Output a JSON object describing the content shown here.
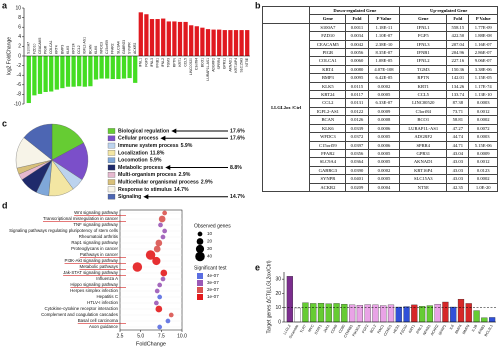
{
  "chart_data": [
    {
      "panel": "a",
      "type": "bar",
      "y_label": "log2 FoldChange",
      "categories": [
        "S100A7",
        "FZD10",
        "CEACAM5",
        "PIGR",
        "COLCA1",
        "KRT4",
        "BMP3",
        "KLK5",
        "KRT24",
        "CCL2",
        "IGFL2-AS1",
        "BCAN",
        "KLK6",
        "WFDC3",
        "C15orf59",
        "FFAR2",
        "SLC9A4",
        "GABRG3",
        "SYNPR",
        "ACKR2",
        "IFNL1",
        "FGF5",
        "IFNL3",
        "IFNB1",
        "IFNL2",
        "TGM3",
        "RPTN",
        "KRT1",
        "CCL5",
        "LINC00520",
        "C3orf84",
        "BCO1",
        "LURAP1L-AS1",
        "ADGRF2",
        "SPRR4",
        "GPR31",
        "AKNAD1",
        "KRT16P4",
        "SLC15A3",
        "NT5E"
      ],
      "values": [
        -9.8,
        -8.2,
        -7.9,
        -7.5,
        -7.4,
        -7.0,
        -6.7,
        -6.4,
        -6.4,
        -6.3,
        -6.4,
        -6.3,
        -4.9,
        -4.7,
        -4.7,
        -4.8,
        -4.8,
        -4.7,
        -4.6,
        -5.6,
        9.1,
        8.7,
        7.7,
        7.7,
        7.8,
        7.2,
        7.2,
        7.1,
        7.1,
        6.4,
        6.2,
        5.9,
        5.6,
        5.5,
        5.5,
        5.4,
        5.4,
        5.4,
        5.4,
        5.4
      ],
      "color_negative": "#44dd22",
      "color_positive": "#e0191f",
      "ylim": [
        -10,
        10
      ],
      "yticks": [
        -10,
        -8,
        -6,
        -4,
        -2,
        0,
        2,
        4,
        6,
        8,
        10
      ]
    },
    {
      "panel": "c",
      "type": "pie",
      "categories": [
        "Biological regulation",
        "Cellular process",
        "Immune system process",
        "Localization",
        "Locomotion",
        "Metabolic process",
        "Multi-organism process",
        "Multicellular organismal process",
        "Response to stimulus",
        "Signaling"
      ],
      "values": [
        17.6,
        17.6,
        5.9,
        11.8,
        5.9,
        8.8,
        2.9,
        2.9,
        14.7,
        14.7
      ],
      "value_labels": [
        "17.6%",
        "17.6%",
        "5.9%",
        "11.8%",
        "5.9%",
        "8.8%",
        "2.9%",
        "2.9%",
        "14.7%",
        "14.7%"
      ],
      "colors": [
        "#66cc33",
        "#7b4fc9",
        "#bcd3ee",
        "#f3e6a3",
        "#7fa7d9",
        "#1f2a6b",
        "#e6b8cf",
        "#d8c07a",
        "#f7f4e8",
        "#4d66b3"
      ]
    },
    {
      "panel": "d",
      "type": "dot",
      "x_label": "FoldChange",
      "categories": [
        "Wnt signaling pathway",
        "Transcriptional misregulation in cancer",
        "TNF signaling pathway",
        "Signaling pathways regulating pluripotency of stem cells",
        "Rheumatoid arthritis",
        "Rap1 signaling pathway",
        "Proteoglycans in cancer",
        "Pathways in cancer",
        "PI3K-Akt signaling pathway",
        "Metabolic pathways",
        "Jak-STAT signaling pathway",
        "Influenza A",
        "Hippo signaling pathway",
        "Herpes simplex infection",
        "Hepatitis C",
        "HTLV-I infection",
        "Cytokine-cytokine receptor interaction",
        "Complement and coagulation cascades",
        "Basal cell carcinoma",
        "Axon guidance"
      ],
      "x": [
        7.9,
        7.6,
        7.4,
        7.9,
        7.7,
        7.2,
        7.0,
        6.2,
        6.9,
        4.6,
        7.8,
        7.7,
        7.3,
        7.0,
        7.3,
        6.9,
        7.2,
        8.7,
        8.3,
        7.3
      ],
      "sizes": [
        10,
        20,
        10,
        10,
        10,
        20,
        20,
        40,
        30,
        40,
        20,
        10,
        10,
        10,
        10,
        10,
        20,
        10,
        10,
        10
      ],
      "pvalues": [
        2e-07,
        2e-07,
        3e-07,
        3e-07,
        3e-07,
        2e-07,
        2e-07,
        1e-07,
        1e-07,
        1e-07,
        1e-07,
        3e-07,
        3e-07,
        3e-07,
        4e-07,
        3e-07,
        1e-07,
        2e-07,
        4e-07,
        4e-07
      ],
      "xlim": [
        2.5,
        10
      ],
      "xticks": [
        {
          "value": 2.5,
          "label": "2.5"
        },
        {
          "value": 5,
          "label": "5.0"
        },
        {
          "value": 7.5,
          "label": "7.5"
        },
        {
          "value": 10,
          "label": "10.0"
        }
      ],
      "size_legend": {
        "title": "Observed genes",
        "values": [
          10,
          20,
          30,
          40
        ]
      },
      "color_legend": {
        "title": "Significant test",
        "levels": [
          {
            "value": 4e-07,
            "label": "4e-07",
            "color": "#5b6ee1"
          },
          {
            "value": 3e-07,
            "label": "3e-07",
            "color": "#9b59b6"
          },
          {
            "value": 2e-07,
            "label": "2e-07",
            "color": "#d9534f"
          },
          {
            "value": 1e-07,
            "label": "1e-07",
            "color": "#e31a1c"
          }
        ]
      }
    },
    {
      "panel": "e",
      "type": "bar",
      "y_label": "Target genes ΔCT(LLGL2ox/Ctrl)",
      "categories": [
        "LLGL2",
        "Scramble",
        "TLR7",
        "MYC",
        "STAT1",
        "JAK1",
        "CDK6",
        "CD80",
        "CTNNB1",
        "PIK3CA",
        "FGF2",
        "BCL2",
        "RAC1",
        "CCND1",
        "HES1",
        "FZD10",
        "KRT1",
        "IFNL1",
        "NFKB1",
        "ACKR2",
        "SFRP1",
        "IL6",
        "BMP4",
        "MMP9",
        "IL1B",
        "IFNB1",
        "BCL2L1"
      ],
      "values": [
        32,
        9.8,
        13.5,
        13,
        13.2,
        12.8,
        13,
        12.5,
        12,
        11.8,
        12.2,
        12,
        11.5,
        12,
        10.5,
        10.8,
        12,
        11,
        11.5,
        12.5,
        14,
        10.5,
        16,
        13,
        8,
        3,
        3.2
      ],
      "colors": [
        "#7b2d8e",
        "#ffffff",
        "#66cc33",
        "#66cc33",
        "#66cc33",
        "#66cc33",
        "#66cc33",
        "#66cc33",
        "#e9a3e6",
        "#e9a3e6",
        "#e9a3e6",
        "#e9a3e6",
        "#e9a3e6",
        "#e9a3e6",
        "#3050d8",
        "#3050d8",
        "#d62728",
        "#66cc33",
        "#66cc33",
        "#e9a3e6",
        "#d62728",
        "#3050d8",
        "#d62728",
        "#d62728",
        "#66cc33",
        "#66cc33",
        "#3050d8"
      ],
      "ylim": [
        0,
        35
      ],
      "yticks": [
        0,
        10,
        20,
        30
      ],
      "reference_line": 10
    }
  ],
  "table": {
    "panel": "b",
    "group_label": "LLGL2ox /Ctrl",
    "group_headers": [
      "Down-regulated Gene",
      "Up-regulated Gene"
    ],
    "columns": [
      "Gene",
      "Fold",
      "P Value",
      "Gene",
      "Fold",
      "P Value"
    ],
    "rows": [
      [
        "S100A7",
        "0.0011",
        "1.18E-11",
        "IFNL1",
        "558.15",
        "1.77E-09"
      ],
      [
        "FZD10",
        "0.0034",
        "1.10E-07",
        "FGF5",
        "422.50",
        "1.88E-08"
      ],
      [
        "CEACAM5",
        "0.0042",
        "2.38E-10",
        "IFNL3",
        "207.04",
        "1.16E-07"
      ],
      [
        "PIGR",
        "0.0056",
        "8.35E-07",
        "IFNB1",
        "204.96",
        "2.86E-07"
      ],
      [
        "COLCA1",
        "0.0060",
        "1.08E-05",
        "IFNL2",
        "227.16",
        "9.06E-07"
      ],
      [
        "KRT4",
        "0.0080",
        "4.07E-108",
        "TGM3",
        "150.36",
        "3.38E-06"
      ],
      [
        "BMP3",
        "0.0095",
        "6.42E-05",
        "RPTN",
        "142.01",
        "1.15E-05"
      ],
      [
        "KLK5",
        "0.0115",
        "0.0002",
        "KRT1",
        "134.26",
        "1.17E-74"
      ],
      [
        "KRT24",
        "0.0117",
        "0.0005",
        "CCL5",
        "133.74",
        "1.13E-10"
      ],
      [
        "CCL2",
        "0.0131",
        "6.33E-07",
        "LINC00520",
        "87.38",
        "0.0003"
      ],
      [
        "IGFL2-AS1",
        "0.0122",
        "0.0009",
        "C3orf84",
        "73.71",
        "0.0012"
      ],
      [
        "BCAN",
        "0.0126",
        "0.0008",
        "BCO1",
        "58.81",
        "0.0002"
      ],
      [
        "KLK6",
        "0.0339",
        "0.0006",
        "LURAP1L-AS1",
        "47.27",
        "0.0072"
      ],
      [
        "WFDC3",
        "0.0372",
        "0.0005",
        "ADGRF2",
        "44.74",
        "0.0003"
      ],
      [
        "C15orf59",
        "0.0397",
        "0.0006",
        "SPRR4",
        "44.71",
        "5.15E-06"
      ],
      [
        "FFAR2",
        "0.0356",
        "0.0005",
        "GPR31",
        "43.04",
        "0.0009"
      ],
      [
        "SLC9A4",
        "0.0364",
        "0.0005",
        "AKNAD1",
        "43.03",
        "0.0012"
      ],
      [
        "GABRG3",
        "0.0390",
        "0.0002",
        "KRT16P4",
        "43.03",
        "0.0123"
      ],
      [
        "SYNPR",
        "0.0401",
        "0.0005",
        "SLC15A3",
        "43.03",
        "0.0002"
      ],
      [
        "ACKR2",
        "0.0209",
        "0.0004",
        "NT5E",
        "42.35",
        "1.0E-20"
      ]
    ]
  }
}
